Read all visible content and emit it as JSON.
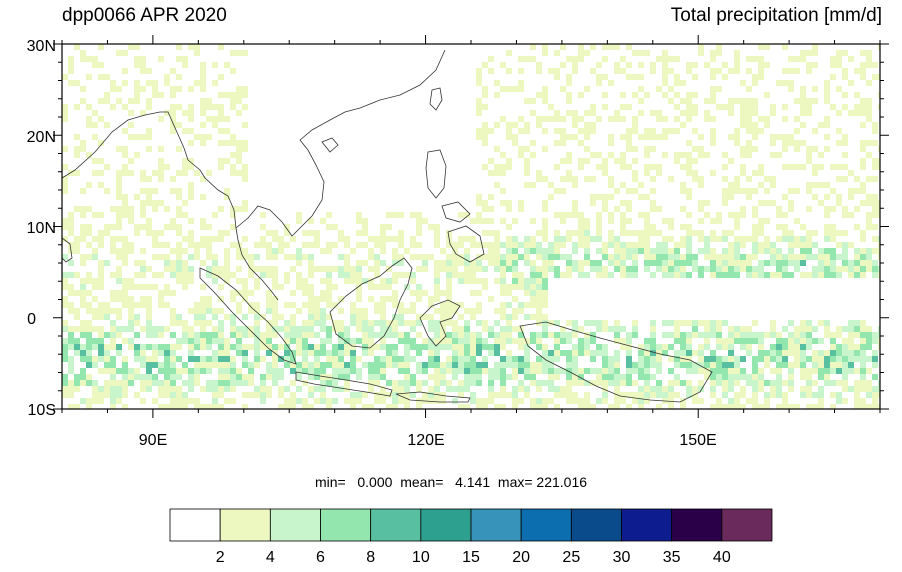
{
  "title_left": "dpp0066 APR 2020",
  "title_right": "Total precipitation [mm/d]",
  "stats": {
    "min_label": "min=",
    "min": "0.000",
    "mean_label": "mean=",
    "mean": "4.141",
    "max_label": "max=",
    "max": "221.016"
  },
  "lat_labels": [
    "30N",
    "20N",
    "10N",
    "0",
    "10S"
  ],
  "lon_labels": [
    "90E",
    "120E",
    "150E"
  ],
  "colorbar": {
    "levels": [
      "2",
      "4",
      "6",
      "8",
      "10",
      "15",
      "20",
      "25",
      "30",
      "35",
      "40"
    ],
    "colors": [
      "#ffffff",
      "#edf8c1",
      "#c9f5cc",
      "#93e6ad",
      "#58c0a0",
      "#2ea090",
      "#3793b9",
      "#0c6eaf",
      "#0a4b8b",
      "#0d1d8f",
      "#2a0048",
      "#6b2a5c"
    ]
  },
  "map": {
    "lon_range": [
      80,
      170
    ],
    "lat_range": [
      -10,
      30
    ],
    "ocean_color": "#ffffff",
    "coast_color": "#333333"
  }
}
